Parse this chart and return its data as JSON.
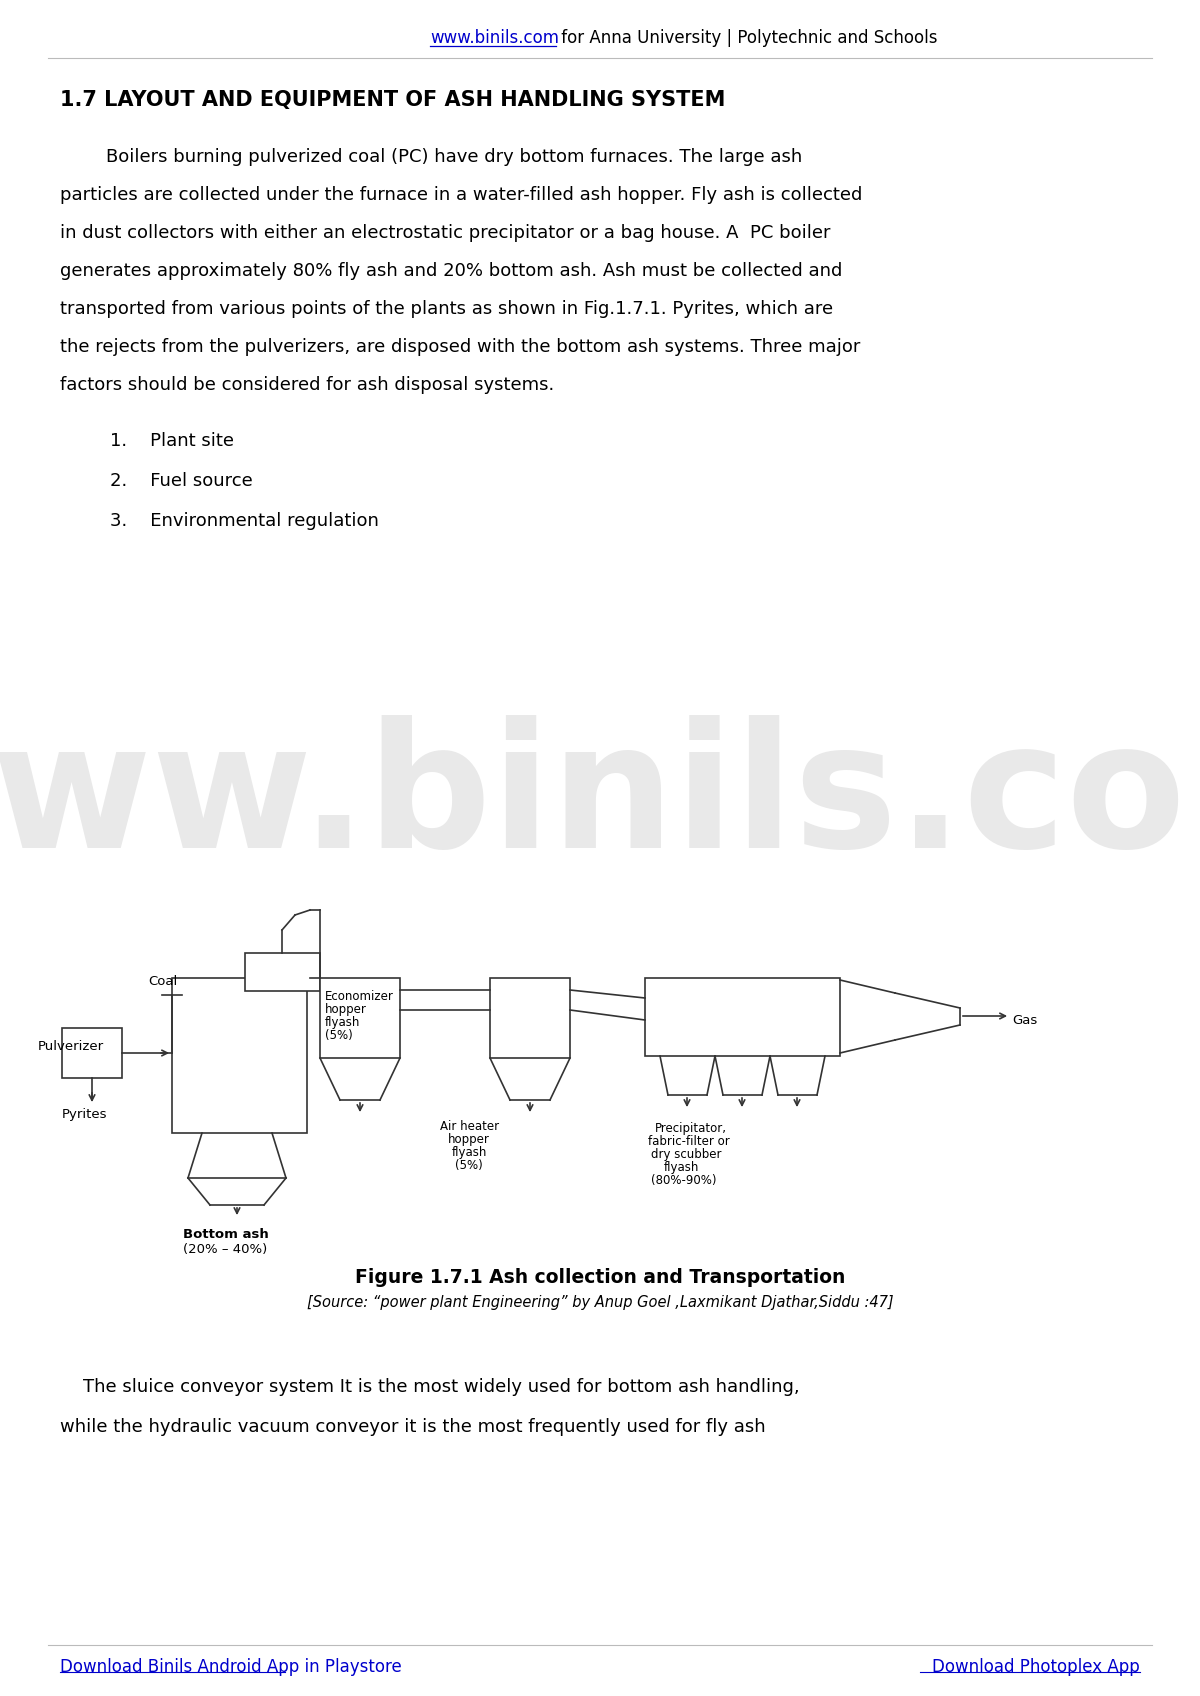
{
  "bg_color": "#ffffff",
  "header_url": "www.binils.com",
  "header_text": " for Anna University | Polytechnic and Schools",
  "section_title": "1.7 LAYOUT AND EQUIPMENT OF ASH HANDLING SYSTEM",
  "p1_lines": [
    "        Boilers burning pulverized coal (PC) have dry bottom furnaces. The large ash",
    "particles are collected under the furnace in a water-filled ash hopper. Fly ash is collected",
    "in dust collectors with either an electrostatic precipitator or a bag house. A  PC boiler",
    "generates approximately 80% fly ash and 20% bottom ash. Ash must be collected and",
    "transported from various points of the plants as shown in Fig.1.7.1. Pyrites, which are",
    "the rejects from the pulverizers, are disposed with the bottom ash systems. Three major",
    "factors should be considered for ash disposal systems."
  ],
  "list_items": [
    "Plant site",
    "Fuel source",
    "Environmental regulation"
  ],
  "fig_caption": "Figure 1.7.1 Ash collection and Transportation",
  "fig_source": "[Source: “power plant Engineering” by Anup Goel ,Laxmikant Djathar,Siddu :47]",
  "p2_lines": [
    "    The sluice conveyor system It is the most widely used for bottom ash handling,",
    "while the hydraulic vacuum conveyor it is the most frequently used for fly ash"
  ],
  "footer_left": "Download Binils Android App in Playstore",
  "footer_right": "Download Photoplex App",
  "watermark": "www.binils.com",
  "text_color": "#000000",
  "link_color": "#0000cc",
  "watermark_color": "#c8c8c8"
}
